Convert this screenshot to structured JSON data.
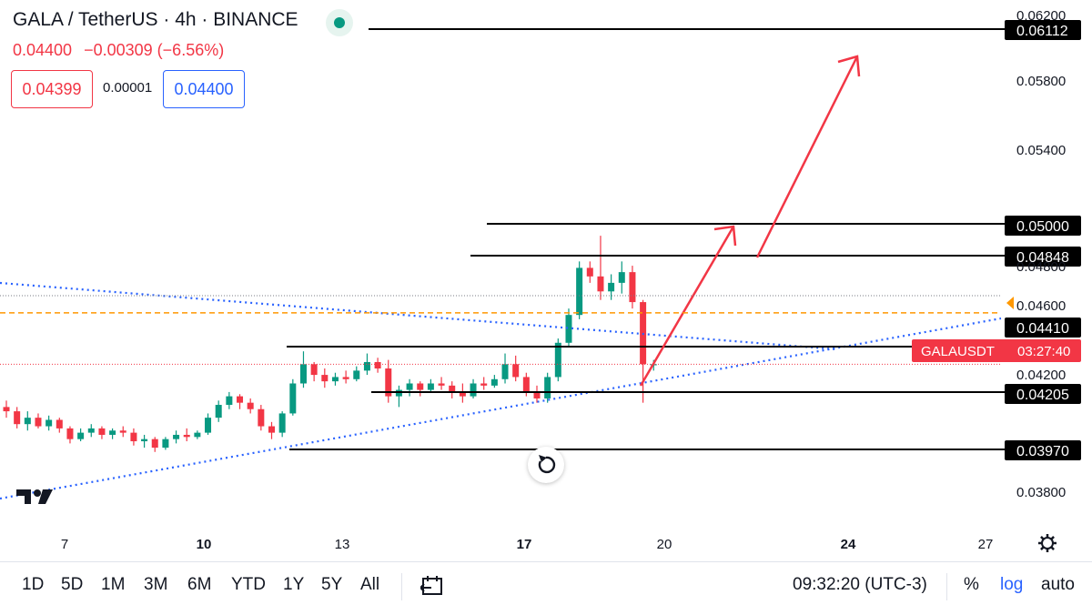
{
  "header": {
    "symbol": "GALA / TetherUS · 4h · BINANCE",
    "last_price": "0.04400",
    "change": "−0.00309 (−6.56%)",
    "bid": "0.04399",
    "spread": "0.00001",
    "ask": "0.04400"
  },
  "colors": {
    "up": "#089981",
    "down": "#f23645",
    "trendline": "#2962ff",
    "level_line": "#000000",
    "arrow": "#f23645",
    "orange_dashed": "#ff9800"
  },
  "chart_data": {
    "type": "candlestick",
    "symbol": "GALAUSDT",
    "countdown": "03:27:40",
    "x_ticks": [
      "7",
      "10",
      "13",
      "17",
      "20",
      "24",
      "27"
    ],
    "y_ticks": [
      "0.06200",
      "0.05800",
      "0.05400",
      "0.04800",
      "0.04600",
      "0.04200",
      "0.03800"
    ],
    "ylim": [
      0.0368,
      0.0624
    ],
    "levels": [
      "0.06112",
      "0.05000",
      "0.04848",
      "0.04410",
      "0.04205",
      "0.03970"
    ],
    "current_price_label": "GALAUSDT",
    "candles": [
      [
        0.042,
        0.0423,
        0.0415,
        0.0418
      ],
      [
        0.0418,
        0.042,
        0.041,
        0.0412
      ],
      [
        0.0412,
        0.0418,
        0.0409,
        0.0415
      ],
      [
        0.0415,
        0.0417,
        0.041,
        0.0411
      ],
      [
        0.0411,
        0.0416,
        0.0409,
        0.0414
      ],
      [
        0.0414,
        0.0415,
        0.0408,
        0.041
      ],
      [
        0.041,
        0.0411,
        0.0403,
        0.0405
      ],
      [
        0.0405,
        0.041,
        0.0404,
        0.0408
      ],
      [
        0.0408,
        0.0412,
        0.0406,
        0.041
      ],
      [
        0.041,
        0.0411,
        0.0405,
        0.0407
      ],
      [
        0.0407,
        0.041,
        0.0405,
        0.0409
      ],
      [
        0.0409,
        0.0411,
        0.0406,
        0.0408
      ],
      [
        0.0408,
        0.041,
        0.0402,
        0.0404
      ],
      [
        0.0404,
        0.0407,
        0.0401,
        0.0405
      ],
      [
        0.0405,
        0.0406,
        0.0399,
        0.0401
      ],
      [
        0.0401,
        0.0406,
        0.04,
        0.0405
      ],
      [
        0.0405,
        0.0409,
        0.0403,
        0.0407
      ],
      [
        0.0407,
        0.041,
        0.0404,
        0.0406
      ],
      [
        0.0406,
        0.0409,
        0.0405,
        0.0408
      ],
      [
        0.0408,
        0.0417,
        0.0407,
        0.0415
      ],
      [
        0.0415,
        0.0423,
        0.0413,
        0.0421
      ],
      [
        0.0421,
        0.0427,
        0.0419,
        0.0425
      ],
      [
        0.0425,
        0.0426,
        0.0419,
        0.0422
      ],
      [
        0.0422,
        0.0424,
        0.0417,
        0.0419
      ],
      [
        0.0419,
        0.0421,
        0.0409,
        0.0411
      ],
      [
        0.0411,
        0.0413,
        0.0405,
        0.0408
      ],
      [
        0.0408,
        0.0418,
        0.0406,
        0.0417
      ],
      [
        0.0417,
        0.0433,
        0.0416,
        0.0431
      ],
      [
        0.0431,
        0.0446,
        0.0429,
        0.044
      ],
      [
        0.044,
        0.0441,
        0.0432,
        0.0435
      ],
      [
        0.0435,
        0.0438,
        0.0429,
        0.0432
      ],
      [
        0.0432,
        0.0436,
        0.043,
        0.0434
      ],
      [
        0.0434,
        0.0437,
        0.0431,
        0.0433
      ],
      [
        0.0433,
        0.0439,
        0.0432,
        0.0437
      ],
      [
        0.0437,
        0.0445,
        0.0435,
        0.0441
      ],
      [
        0.0441,
        0.0443,
        0.0436,
        0.0438
      ],
      [
        0.0438,
        0.0442,
        0.0422,
        0.0425
      ],
      [
        0.0425,
        0.043,
        0.042,
        0.0428
      ],
      [
        0.0428,
        0.0433,
        0.0425,
        0.0431
      ],
      [
        0.0431,
        0.0432,
        0.0425,
        0.0428
      ],
      [
        0.0428,
        0.0433,
        0.0427,
        0.0431
      ],
      [
        0.0431,
        0.0434,
        0.0428,
        0.043
      ],
      [
        0.043,
        0.0432,
        0.0424,
        0.0427
      ],
      [
        0.0427,
        0.0431,
        0.0422,
        0.0425
      ],
      [
        0.0425,
        0.0433,
        0.0424,
        0.0431
      ],
      [
        0.0431,
        0.0434,
        0.0428,
        0.043
      ],
      [
        0.043,
        0.0435,
        0.0429,
        0.0433
      ],
      [
        0.0433,
        0.0445,
        0.0431,
        0.044
      ],
      [
        0.044,
        0.0444,
        0.0432,
        0.0434
      ],
      [
        0.0434,
        0.0436,
        0.0425,
        0.0427
      ],
      [
        0.0427,
        0.043,
        0.0422,
        0.0424
      ],
      [
        0.0424,
        0.0436,
        0.0422,
        0.0434
      ],
      [
        0.0434,
        0.0452,
        0.0432,
        0.045
      ],
      [
        0.045,
        0.0466,
        0.0448,
        0.0463
      ],
      [
        0.0463,
        0.0488,
        0.0461,
        0.0485
      ],
      [
        0.0485,
        0.0488,
        0.0478,
        0.0481
      ],
      [
        0.0481,
        0.05,
        0.047,
        0.0474
      ],
      [
        0.0474,
        0.0482,
        0.047,
        0.0478
      ],
      [
        0.0478,
        0.0488,
        0.0473,
        0.0483
      ],
      [
        0.0483,
        0.0486,
        0.0466,
        0.0469
      ],
      [
        0.0469,
        0.047,
        0.0422,
        0.044
      ],
      [
        0.044,
        0.0442,
        0.0437,
        0.044
      ]
    ]
  },
  "bottom_bar": {
    "ranges": [
      "1D",
      "5D",
      "1M",
      "3M",
      "6M",
      "YTD",
      "1Y",
      "5Y",
      "All"
    ],
    "time": "09:32:20 (UTC-3)",
    "percent": "%",
    "log": "log",
    "auto": "auto"
  }
}
